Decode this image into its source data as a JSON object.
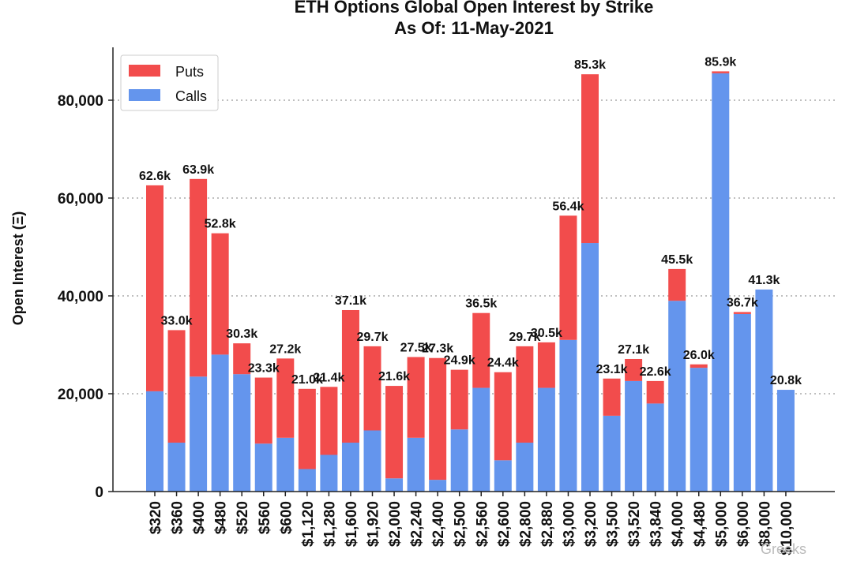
{
  "chart_data": {
    "type": "bar",
    "stacked": true,
    "title": "ETH Options Global Open Interest by Strike",
    "subtitle": "As Of: 11-May-2021",
    "ylabel": "Open Interest (Ξ)",
    "xlabel": "",
    "ylim": [
      0,
      90000
    ],
    "yticks": [
      0,
      20000,
      40000,
      60000,
      80000
    ],
    "ytick_labels": [
      "0",
      "20,000",
      "40,000",
      "60,000",
      "80,000"
    ],
    "grid": "horizontal dotted",
    "legend_position": "top-left",
    "categories": [
      "$320",
      "$360",
      "$400",
      "$480",
      "$520",
      "$560",
      "$600",
      "$1,120",
      "$1,280",
      "$1,600",
      "$1,920",
      "$2,000",
      "$2,240",
      "$2,400",
      "$2,500",
      "$2,560",
      "$2,600",
      "$2,800",
      "$2,880",
      "$3,000",
      "$3,200",
      "$3,500",
      "$3,520",
      "$3,840",
      "$4,000",
      "$4,480",
      "$5,000",
      "$6,000",
      "$8,000",
      "$10,000"
    ],
    "series": [
      {
        "name": "Calls",
        "color": "#6495ED",
        "values": [
          20500,
          10000,
          23500,
          28000,
          24000,
          9800,
          11000,
          4600,
          7500,
          10000,
          12500,
          2700,
          11000,
          2400,
          12700,
          21200,
          6400,
          10000,
          21200,
          31000,
          50800,
          15500,
          22600,
          18000,
          39000,
          25300,
          85500,
          36300,
          41300,
          20800
        ]
      },
      {
        "name": "Puts",
        "color": "#F24C4C",
        "values": [
          42100,
          23000,
          40400,
          24800,
          6300,
          13500,
          16200,
          16400,
          13900,
          27100,
          17200,
          18900,
          16500,
          24900,
          12200,
          15300,
          18000,
          19700,
          9300,
          25400,
          34500,
          7600,
          4500,
          4600,
          6500,
          700,
          400,
          400,
          0,
          0
        ]
      }
    ],
    "totals": [
      62600,
      33000,
      63900,
      52800,
      30300,
      23300,
      27200,
      21000,
      21400,
      37100,
      29700,
      21600,
      27500,
      27300,
      24900,
      36500,
      24400,
      29700,
      30500,
      56400,
      85300,
      23100,
      27100,
      22600,
      45500,
      26000,
      85900,
      36700,
      41300,
      20800
    ],
    "data_labels": [
      "62.6k",
      "33.0k",
      "63.9k",
      "52.8k",
      "30.3k",
      "23.3k",
      "27.2k",
      "21.0k",
      "21.4k",
      "37.1k",
      "29.7k",
      "21.6k",
      "27.5k",
      "27.3k",
      "24.9k",
      "36.5k",
      "24.4k",
      "29.7k",
      "30.5k",
      "56.4k",
      "85.3k",
      "23.1k",
      "27.1k",
      "22.6k",
      "45.5k",
      "26.0k",
      "85.9k",
      "36.7k",
      "41.3k",
      "20.8k"
    ],
    "legend": [
      {
        "label": "Puts",
        "color": "#F24C4C"
      },
      {
        "label": "Calls",
        "color": "#6495ED"
      }
    ]
  },
  "watermark": {
    "text": "Greeks"
  }
}
